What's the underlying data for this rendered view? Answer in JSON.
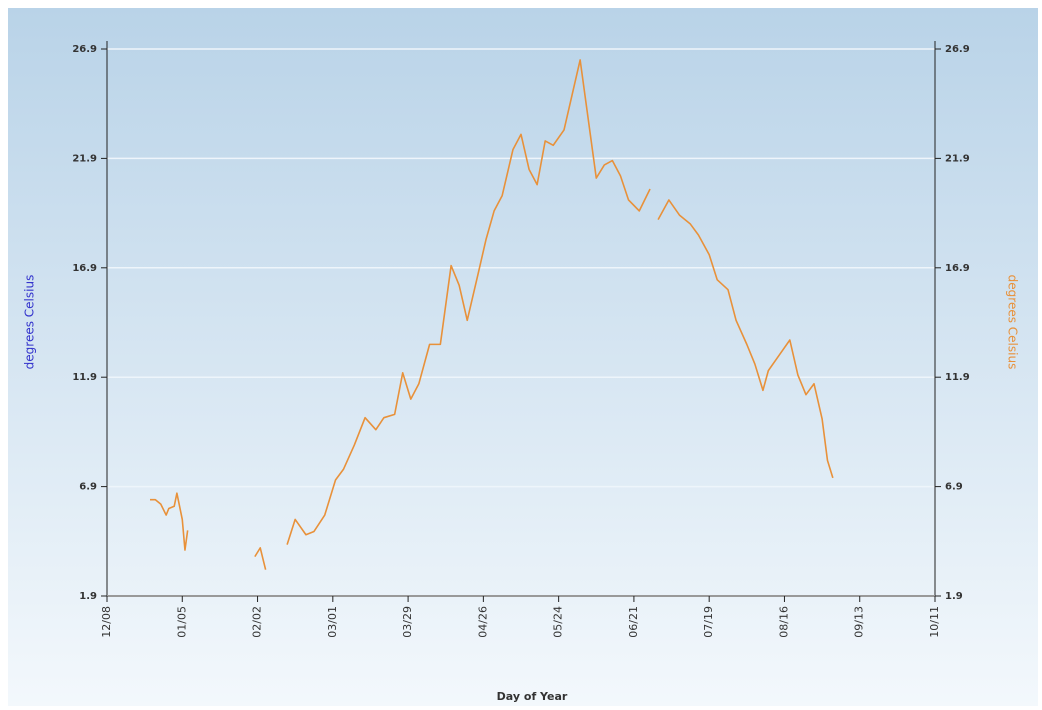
{
  "chart_data": {
    "type": "line",
    "x_label": "Day of Year",
    "y_label": "degrees Celsius",
    "y2_label": "degrees Celsius",
    "xlim": [
      0,
      308
    ],
    "xticks": [
      {
        "value": 0,
        "label": "12/08"
      },
      {
        "value": 28,
        "label": "01/05"
      },
      {
        "value": 56,
        "label": "02/02"
      },
      {
        "value": 84,
        "label": "03/01"
      },
      {
        "value": 112,
        "label": "03/29"
      },
      {
        "value": 140,
        "label": "04/26"
      },
      {
        "value": 168,
        "label": "05/24"
      },
      {
        "value": 196,
        "label": "06/21"
      },
      {
        "value": 224,
        "label": "07/19"
      },
      {
        "value": 252,
        "label": "08/16"
      },
      {
        "value": 280,
        "label": "09/13"
      },
      {
        "value": 308,
        "label": "10/11"
      }
    ],
    "ylim": [
      1.9,
      26.9
    ],
    "yticks": [
      1.9,
      6.9,
      11.9,
      16.9,
      21.9,
      26.9
    ],
    "y2lim": [
      1.9,
      26.9
    ],
    "y2ticks": [
      1.9,
      6.9,
      11.9,
      16.9,
      21.9,
      26.9
    ],
    "grid": true,
    "x": [
      16,
      18,
      20,
      22,
      23,
      25,
      26,
      27,
      28,
      29,
      30,
      42,
      55,
      57,
      58,
      59,
      63,
      67,
      70,
      74,
      77,
      81,
      85,
      88,
      92,
      96,
      100,
      103,
      107,
      110,
      113,
      116,
      120,
      124,
      128,
      131,
      134,
      138,
      141,
      144,
      147,
      151,
      154,
      157,
      160,
      163,
      166,
      170,
      173,
      176,
      179,
      182,
      185,
      188,
      191,
      194,
      198,
      202,
      203,
      205,
      209,
      213,
      217,
      220,
      224,
      227,
      231,
      234,
      238,
      241,
      244,
      246,
      250,
      254,
      257,
      260,
      263,
      266,
      268,
      270
    ],
    "series": [
      {
        "name": "degrees Celsius",
        "color": "#e8913a",
        "values": [
          6.3,
          6.3,
          6.1,
          5.6,
          5.9,
          6.0,
          6.6,
          6.0,
          5.4,
          4.0,
          4.9,
          null,
          3.7,
          4.1,
          3.6,
          3.1,
          null,
          4.25,
          5.4,
          4.7,
          4.85,
          5.6,
          7.2,
          7.7,
          8.8,
          10.05,
          9.5,
          10.05,
          10.2,
          12.1,
          10.9,
          11.6,
          13.4,
          13.4,
          17.0,
          16.1,
          14.5,
          16.6,
          18.2,
          19.5,
          20.2,
          22.3,
          23.0,
          21.4,
          20.7,
          22.7,
          22.5,
          23.2,
          24.8,
          26.4,
          23.7,
          21.0,
          21.6,
          21.8,
          21.1,
          20.0,
          19.5,
          20.5,
          null,
          19.1,
          20.0,
          19.3,
          18.9,
          18.4,
          17.5,
          16.35,
          15.9,
          14.5,
          13.4,
          12.5,
          11.3,
          12.2,
          12.9,
          13.6,
          12.0,
          11.1,
          11.6,
          10.0,
          8.1,
          7.3
        ]
      }
    ]
  }
}
